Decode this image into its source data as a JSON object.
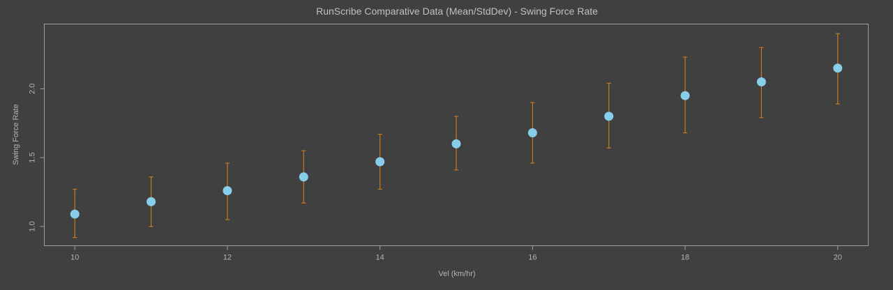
{
  "chart_data": {
    "type": "scatter",
    "title": "RunScribe Comparative Data (Mean/StdDev) - Swing Force Rate",
    "xlabel": "Vel (km/hr)",
    "ylabel": "Swing Force Rate",
    "xlim": [
      9.6,
      20.4
    ],
    "ylim": [
      0.86,
      2.47
    ],
    "xticks": [
      10,
      12,
      14,
      16,
      18,
      20
    ],
    "yticks": [
      "1.0",
      "1.5",
      "2.0"
    ],
    "grid": false,
    "colors": {
      "point": "#87ceeb",
      "errorbar": "#c87a20",
      "background": "#404040",
      "frame": "#a0a0a0"
    },
    "series": [
      {
        "x": [
          10,
          11,
          12,
          13,
          14,
          15,
          16,
          17,
          18,
          19,
          20
        ],
        "mean": [
          1.09,
          1.18,
          1.26,
          1.36,
          1.47,
          1.6,
          1.68,
          1.8,
          1.95,
          2.05,
          2.15
        ],
        "low": [
          0.92,
          1.0,
          1.05,
          1.17,
          1.27,
          1.41,
          1.46,
          1.57,
          1.68,
          1.79,
          1.89
        ],
        "high": [
          1.27,
          1.36,
          1.46,
          1.55,
          1.67,
          1.8,
          1.9,
          2.04,
          2.23,
          2.3,
          2.4
        ]
      }
    ]
  }
}
